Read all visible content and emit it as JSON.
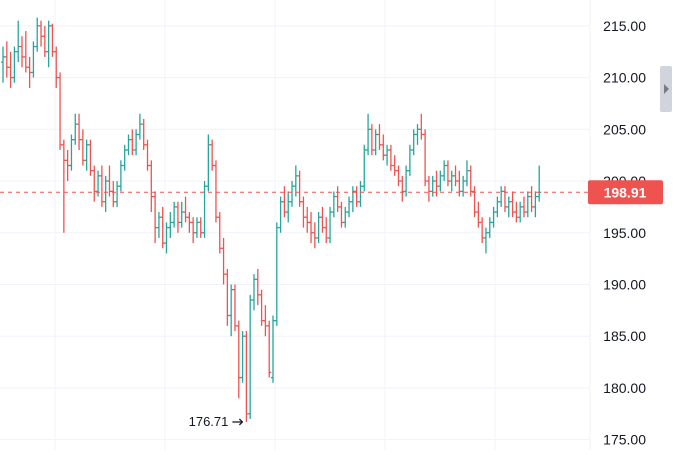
{
  "colors": {
    "up": "#26a69a",
    "down": "#ef5350",
    "grid": "#f0f3fa",
    "axis_text": "#131722",
    "price_line": "#ef5350",
    "price_tag_bg": "#ef5350",
    "price_tag_text": "#ffffff",
    "scroll_handle": "#d1d4dc"
  },
  "icons": {
    "scroll_handle": "triangle-right-icon",
    "low_marker": "arrow-right-icon"
  },
  "chart_data": {
    "type": "ohlc",
    "y_range": [
      174.0,
      217.5
    ],
    "y_ticks": [
      "215.00",
      "210.00",
      "205.00",
      "200.00",
      "195.00",
      "190.00",
      "185.00",
      "180.00",
      "175.00"
    ],
    "grid": true,
    "last_price": {
      "value": 198.91,
      "label": "198.91"
    },
    "low_annotation": {
      "value": 176.71,
      "label": "176.71"
    },
    "bars": [
      [
        211.5,
        213.0,
        209.5,
        212.0
      ],
      [
        212.0,
        213.5,
        210.0,
        211.0
      ],
      [
        211.0,
        212.5,
        209.0,
        210.0
      ],
      [
        210.0,
        213.0,
        209.5,
        212.5
      ],
      [
        212.5,
        215.5,
        211.5,
        213.0
      ],
      [
        213.0,
        214.0,
        211.0,
        212.0
      ],
      [
        212.0,
        214.5,
        210.5,
        211.0
      ],
      [
        211.0,
        212.0,
        209.0,
        210.5
      ],
      [
        210.5,
        213.5,
        210.0,
        213.0
      ],
      [
        213.0,
        215.8,
        212.5,
        215.0
      ],
      [
        215.0,
        215.5,
        213.0,
        214.0
      ],
      [
        214.0,
        215.0,
        212.0,
        212.5
      ],
      [
        212.5,
        215.5,
        211.0,
        215.0
      ],
      [
        215.0,
        215.2,
        212.0,
        212.5
      ],
      [
        212.5,
        213.0,
        209.0,
        210.0
      ],
      [
        210.0,
        210.5,
        203.0,
        203.5
      ],
      [
        203.5,
        204.0,
        195.0,
        202.0
      ],
      [
        202.0,
        203.0,
        200.0,
        201.5
      ],
      [
        201.5,
        204.5,
        201.0,
        204.0
      ],
      [
        204.0,
        206.5,
        203.5,
        205.5
      ],
      [
        205.5,
        206.5,
        203.0,
        204.0
      ],
      [
        204.0,
        205.0,
        201.5,
        202.0
      ],
      [
        202.0,
        204.0,
        201.0,
        203.5
      ],
      [
        203.5,
        204.0,
        200.5,
        201.0
      ],
      [
        201.0,
        201.5,
        198.0,
        199.0
      ],
      [
        199.0,
        201.0,
        198.5,
        200.5
      ],
      [
        200.5,
        201.5,
        197.5,
        198.0
      ],
      [
        198.0,
        200.5,
        197.0,
        200.0
      ],
      [
        200.0,
        201.5,
        198.5,
        199.0
      ],
      [
        199.0,
        200.0,
        197.5,
        198.0
      ],
      [
        198.0,
        200.0,
        197.5,
        199.5
      ],
      [
        199.5,
        202.0,
        199.0,
        201.5
      ],
      [
        201.5,
        203.5,
        201.0,
        203.0
      ],
      [
        203.0,
        204.5,
        202.5,
        204.0
      ],
      [
        204.0,
        205.0,
        202.5,
        203.0
      ],
      [
        203.0,
        205.0,
        202.5,
        204.5
      ],
      [
        204.5,
        206.5,
        204.0,
        205.5
      ],
      [
        205.5,
        206.0,
        203.0,
        203.5
      ],
      [
        203.5,
        204.0,
        201.0,
        201.5
      ],
      [
        201.5,
        202.0,
        197.0,
        198.5
      ],
      [
        198.5,
        199.0,
        194.0,
        195.5
      ],
      [
        195.5,
        197.0,
        194.5,
        196.5
      ],
      [
        196.5,
        197.5,
        193.5,
        194.0
      ],
      [
        194.0,
        196.0,
        193.0,
        195.5
      ],
      [
        195.5,
        197.0,
        194.5,
        196.0
      ],
      [
        196.0,
        198.0,
        195.5,
        197.5
      ],
      [
        197.5,
        198.0,
        195.0,
        196.0
      ],
      [
        196.0,
        198.0,
        195.5,
        197.0
      ],
      [
        197.0,
        198.5,
        196.0,
        196.5
      ],
      [
        196.5,
        197.0,
        195.0,
        196.0
      ],
      [
        196.0,
        196.5,
        194.0,
        195.0
      ],
      [
        195.0,
        196.5,
        194.5,
        196.0
      ],
      [
        196.0,
        196.5,
        194.5,
        195.0
      ],
      [
        195.0,
        200.0,
        194.5,
        199.5
      ],
      [
        199.5,
        204.5,
        199.0,
        203.5
      ],
      [
        203.5,
        204.0,
        201.0,
        201.5
      ],
      [
        201.5,
        202.0,
        196.0,
        196.5
      ],
      [
        196.5,
        197.0,
        193.0,
        193.5
      ],
      [
        193.5,
        194.5,
        190.0,
        191.0
      ],
      [
        191.0,
        191.5,
        186.0,
        187.0
      ],
      [
        187.0,
        190.0,
        185.0,
        189.5
      ],
      [
        189.5,
        190.0,
        185.5,
        186.0
      ],
      [
        186.0,
        186.5,
        179.0,
        181.0
      ],
      [
        181.0,
        185.5,
        180.5,
        185.0
      ],
      [
        185.0,
        185.5,
        176.71,
        177.5
      ],
      [
        177.5,
        189.0,
        177.0,
        188.5
      ],
      [
        188.5,
        191.0,
        187.5,
        190.5
      ],
      [
        190.5,
        191.5,
        188.0,
        189.0
      ],
      [
        189.0,
        189.5,
        186.0,
        186.5
      ],
      [
        186.5,
        188.0,
        185.0,
        186.0
      ],
      [
        186.0,
        186.5,
        181.0,
        181.5
      ],
      [
        181.0,
        187.0,
        180.5,
        186.5
      ],
      [
        186.5,
        196.0,
        186.0,
        195.5
      ],
      [
        195.5,
        198.5,
        195.0,
        198.0
      ],
      [
        198.0,
        199.5,
        196.5,
        197.0
      ],
      [
        197.0,
        199.0,
        196.0,
        198.0
      ],
      [
        198.0,
        200.0,
        197.5,
        199.5
      ],
      [
        199.5,
        201.5,
        198.5,
        200.5
      ],
      [
        200.5,
        201.0,
        197.5,
        198.0
      ],
      [
        198.0,
        198.5,
        195.5,
        196.5
      ],
      [
        196.5,
        197.5,
        195.0,
        196.0
      ],
      [
        196.0,
        197.0,
        194.0,
        195.0
      ],
      [
        195.0,
        196.0,
        193.5,
        194.5
      ],
      [
        194.5,
        197.0,
        194.0,
        196.5
      ],
      [
        196.5,
        197.5,
        195.0,
        195.5
      ],
      [
        195.5,
        196.5,
        194.0,
        194.5
      ],
      [
        194.5,
        197.5,
        194.0,
        197.0
      ],
      [
        197.0,
        199.0,
        196.5,
        198.5
      ],
      [
        198.5,
        199.5,
        197.0,
        197.5
      ],
      [
        197.5,
        198.0,
        195.5,
        196.0
      ],
      [
        196.0,
        197.5,
        195.5,
        197.0
      ],
      [
        197.0,
        198.5,
        196.5,
        198.0
      ],
      [
        198.0,
        199.5,
        197.0,
        199.0
      ],
      [
        199.0,
        199.5,
        197.5,
        198.0
      ],
      [
        198.0,
        200.0,
        197.5,
        199.5
      ],
      [
        199.5,
        203.5,
        199.0,
        203.0
      ],
      [
        203.0,
        206.5,
        202.5,
        205.0
      ],
      [
        205.0,
        205.5,
        202.5,
        203.0
      ],
      [
        203.0,
        205.0,
        202.5,
        204.5
      ],
      [
        204.5,
        205.5,
        203.0,
        203.5
      ],
      [
        203.5,
        204.5,
        202.0,
        202.5
      ],
      [
        202.5,
        203.5,
        201.5,
        203.0
      ],
      [
        203.0,
        203.5,
        201.0,
        201.5
      ],
      [
        201.5,
        202.5,
        200.5,
        201.0
      ],
      [
        201.0,
        201.5,
        199.5,
        200.0
      ],
      [
        200.0,
        200.5,
        198.0,
        199.0
      ],
      [
        199.0,
        201.5,
        198.5,
        201.0
      ],
      [
        201.0,
        203.5,
        200.5,
        203.0
      ],
      [
        203.0,
        205.0,
        202.5,
        204.5
      ],
      [
        204.5,
        205.5,
        203.5,
        205.0
      ],
      [
        205.0,
        206.5,
        204.0,
        204.5
      ],
      [
        204.5,
        205.0,
        199.5,
        200.0
      ],
      [
        200.0,
        200.5,
        198.0,
        199.0
      ],
      [
        199.0,
        200.5,
        198.5,
        200.0
      ],
      [
        200.0,
        201.0,
        198.5,
        199.5
      ],
      [
        199.5,
        201.0,
        199.0,
        200.5
      ],
      [
        200.5,
        202.0,
        200.0,
        201.5
      ],
      [
        201.5,
        202.0,
        199.5,
        200.0
      ],
      [
        200.0,
        201.0,
        199.0,
        200.5
      ],
      [
        200.5,
        201.5,
        199.5,
        200.0
      ],
      [
        200.0,
        201.0,
        198.5,
        199.0
      ],
      [
        199.0,
        200.5,
        198.5,
        200.0
      ],
      [
        200.0,
        202.0,
        199.5,
        201.0
      ],
      [
        201.0,
        201.5,
        198.5,
        199.0
      ],
      [
        199.0,
        199.5,
        196.5,
        197.0
      ],
      [
        197.0,
        198.0,
        195.5,
        196.0
      ],
      [
        196.0,
        196.5,
        194.0,
        194.5
      ],
      [
        194.5,
        195.5,
        193.0,
        195.0
      ],
      [
        195.0,
        196.5,
        194.5,
        196.0
      ],
      [
        196.0,
        197.5,
        195.5,
        197.0
      ],
      [
        197.0,
        198.5,
        196.5,
        198.0
      ],
      [
        198.0,
        199.5,
        197.5,
        199.0
      ],
      [
        199.0,
        199.5,
        197.0,
        197.5
      ],
      [
        197.5,
        198.5,
        196.5,
        198.0
      ],
      [
        198.0,
        199.0,
        196.5,
        197.0
      ],
      [
        197.0,
        198.0,
        196.0,
        196.5
      ],
      [
        196.5,
        198.0,
        196.0,
        197.5
      ],
      [
        197.5,
        198.5,
        196.5,
        197.0
      ],
      [
        197.0,
        199.0,
        196.5,
        198.5
      ],
      [
        198.5,
        199.5,
        197.0,
        197.5
      ],
      [
        197.5,
        199.0,
        196.5,
        198.5
      ],
      [
        198.5,
        201.5,
        198.0,
        198.91
      ]
    ]
  }
}
